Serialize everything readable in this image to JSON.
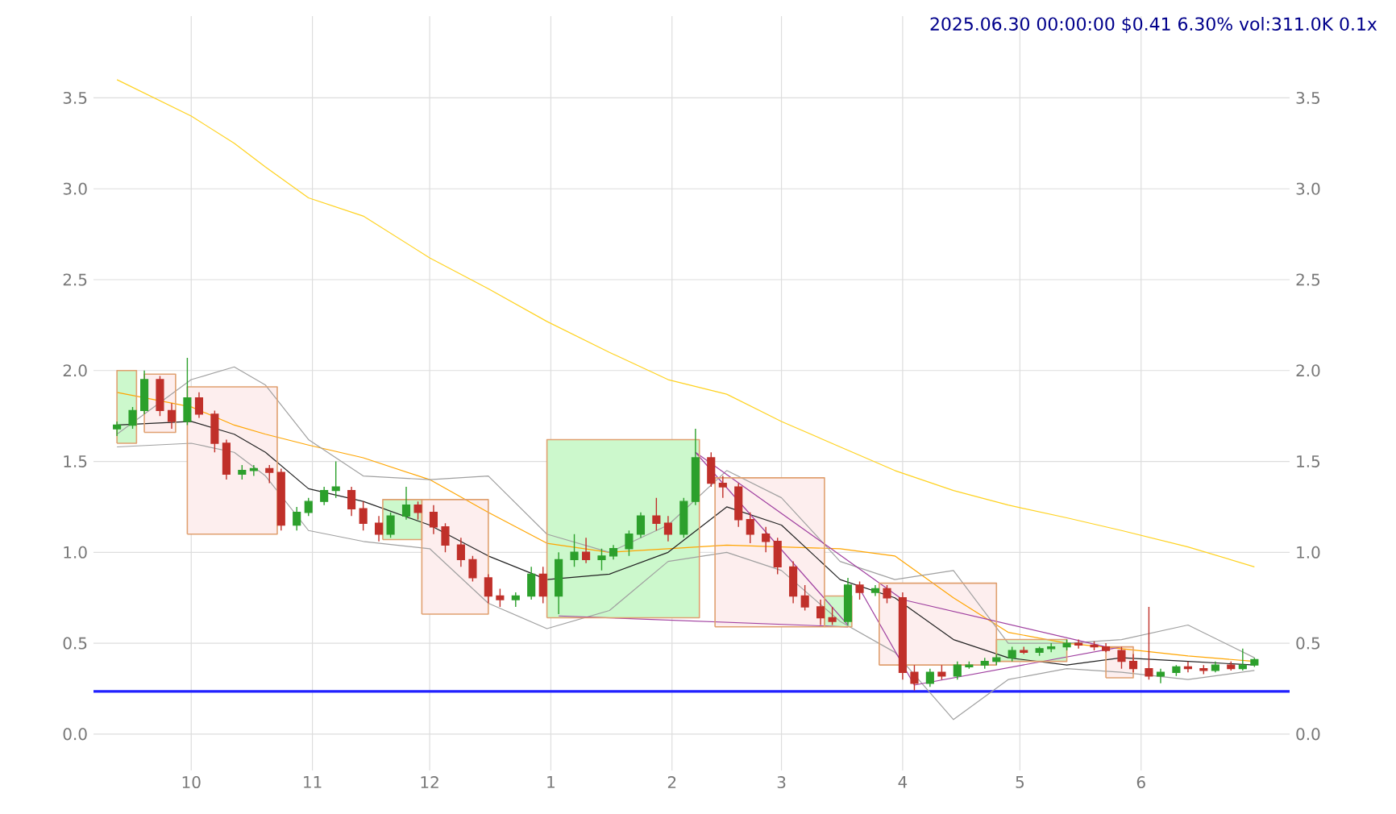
{
  "chart_data": {
    "type": "candlestick",
    "title": "2025.06.30 00:00:00 $0.41 6.30% vol:311.0K 0.1x",
    "x": [
      "2024-09-12",
      "2024-10-01",
      "2024-10-12",
      "2024-10-20",
      "2024-10-31",
      "2024-11-14",
      "2024-12-01",
      "2024-12-16",
      "2024-12-31",
      "2025-01-16",
      "2025-01-31",
      "2025-02-15",
      "2025-03-01",
      "2025-03-16",
      "2025-03-30",
      "2025-04-14",
      "2025-04-28",
      "2025-05-13",
      "2025-05-27",
      "2025-06-13",
      "2025-06-30"
    ],
    "series": [
      {
        "type": "area",
        "color": "#ccf8cc",
        "x": [
          "2024-09-12",
          "2024-09-12",
          "2024-09-17",
          "2024-09-17",
          "2024-09-12"
        ],
        "values": [
          1.6,
          2.0,
          2.0,
          1.6,
          1.6
        ]
      },
      {
        "type": "area",
        "color": "#fdeeee",
        "x": [
          "2024-09-19",
          "2024-09-19",
          "2024-09-27",
          "2024-09-27",
          "2024-09-19"
        ],
        "values": [
          1.66,
          1.98,
          1.98,
          1.66,
          1.66
        ]
      },
      {
        "type": "area",
        "color": "#fdeeee",
        "x": [
          "2024-09-30",
          "2024-09-30",
          "2024-10-23",
          "2024-10-23",
          "2024-09-30"
        ],
        "values": [
          1.1,
          1.91,
          1.91,
          1.1,
          1.1
        ]
      },
      {
        "type": "area",
        "color": "#ccf8cc",
        "x": [
          "2024-11-19",
          "2024-11-19",
          "2024-11-29",
          "2024-11-29",
          "2024-11-19"
        ],
        "values": [
          1.07,
          1.29,
          1.29,
          1.07,
          1.07
        ]
      },
      {
        "type": "area",
        "color": "#fdeeee",
        "x": [
          "2024-11-29",
          "2024-11-29",
          "2024-12-16",
          "2024-12-16",
          "2024-11-29"
        ],
        "values": [
          0.66,
          1.29,
          1.29,
          0.66,
          0.66
        ]
      },
      {
        "type": "area",
        "color": "#ccf8cc",
        "x": [
          "2024-12-31",
          "2024-12-31",
          "2025-02-08",
          "2025-02-08",
          "2024-12-31"
        ],
        "values": [
          0.64,
          1.62,
          1.62,
          0.64,
          0.64
        ]
      },
      {
        "type": "area",
        "color": "#fdeeee",
        "x": [
          "2025-02-12",
          "2025-02-12",
          "2025-03-12",
          "2025-03-12",
          "2025-02-12"
        ],
        "values": [
          0.59,
          1.41,
          1.41,
          0.59,
          0.59
        ]
      },
      {
        "type": "area",
        "color": "#ccf8cc",
        "x": [
          "2025-03-12",
          "2025-03-12",
          "2025-03-19",
          "2025-03-19",
          "2025-03-12"
        ],
        "values": [
          0.59,
          0.76,
          0.76,
          0.59,
          0.59
        ]
      },
      {
        "type": "area",
        "color": "#fdeeee",
        "x": [
          "2025-03-26",
          "2025-03-26",
          "2025-04-25",
          "2025-04-25",
          "2025-03-26"
        ],
        "values": [
          0.38,
          0.83,
          0.83,
          0.38,
          0.38
        ]
      },
      {
        "type": "area",
        "color": "#ccf8cc",
        "x": [
          "2025-04-25",
          "2025-04-25",
          "2025-05-13",
          "2025-05-13",
          "2025-04-25"
        ],
        "values": [
          0.4,
          0.52,
          0.52,
          0.4,
          0.4
        ]
      },
      {
        "type": "area",
        "color": "#fdeeee",
        "x": [
          "2025-05-23",
          "2025-05-23",
          "2025-05-30",
          "2025-05-30",
          "2025-05-23"
        ],
        "values": [
          0.31,
          0.48,
          0.48,
          0.31,
          0.31
        ]
      },
      {
        "type": "line",
        "color": "#ffd21f",
        "values": [
          3.6,
          3.4,
          3.25,
          3.12,
          2.95,
          2.85,
          2.62,
          2.45,
          2.27,
          2.1,
          1.95,
          1.87,
          1.72,
          1.58,
          1.45,
          1.34,
          1.26,
          1.19,
          1.12,
          1.03,
          0.92
        ]
      },
      {
        "type": "line",
        "color": "#ffa500",
        "values": [
          1.88,
          1.8,
          1.7,
          1.65,
          1.59,
          1.52,
          1.4,
          1.22,
          1.05,
          1.0,
          1.02,
          1.04,
          1.03,
          1.02,
          0.98,
          0.75,
          0.56,
          0.5,
          0.47,
          0.43,
          0.4
        ]
      },
      {
        "type": "line",
        "color": "#222222",
        "values": [
          1.7,
          1.72,
          1.65,
          1.55,
          1.35,
          1.28,
          1.15,
          0.98,
          0.85,
          0.88,
          1.0,
          1.25,
          1.15,
          0.85,
          0.75,
          0.52,
          0.42,
          0.38,
          0.42,
          0.4,
          0.38
        ]
      },
      {
        "type": "line",
        "color": "#a0a0a0",
        "values": [
          1.65,
          1.95,
          2.02,
          1.92,
          1.62,
          1.42,
          1.4,
          1.42,
          1.1,
          1.0,
          1.15,
          1.45,
          1.3,
          0.95,
          0.85,
          0.9,
          0.5,
          0.5,
          0.52,
          0.6,
          0.42
        ]
      },
      {
        "type": "line",
        "color": "#a0a0a0",
        "values": [
          1.58,
          1.6,
          1.55,
          1.42,
          1.12,
          1.06,
          1.02,
          0.72,
          0.58,
          0.68,
          0.95,
          1.0,
          0.9,
          0.62,
          0.45,
          0.08,
          0.3,
          0.36,
          0.34,
          0.3,
          0.35
        ]
      },
      {
        "type": "line",
        "color": "#a040a0",
        "x": [
          "2025-02-07",
          "2025-03-18"
        ],
        "values": [
          1.55,
          0.6
        ]
      },
      {
        "type": "line",
        "color": "#a040a0",
        "x": [
          "2025-02-07",
          "2025-04-01",
          "2025-05-23"
        ],
        "values": [
          1.55,
          0.74,
          0.48
        ]
      },
      {
        "type": "line",
        "color": "#a040a0",
        "x": [
          "2025-01-03",
          "2025-03-18"
        ],
        "values": [
          0.65,
          0.59
        ]
      },
      {
        "type": "line",
        "color": "#a040a0",
        "x": [
          "2025-03-21",
          "2025-04-04"
        ],
        "values": [
          0.8,
          0.27
        ]
      },
      {
        "type": "line",
        "color": "#a040a0",
        "x": [
          "2025-04-04",
          "2025-05-27"
        ],
        "values": [
          0.27,
          0.48
        ]
      },
      {
        "type": "candlestick",
        "color": "#2ca02c",
        "x": [
          "2024-09-12",
          "2024-09-16",
          "2024-09-19",
          "2024-09-30",
          "2024-10-14",
          "2024-10-17",
          "2024-10-28",
          "2024-10-31",
          "2024-11-04",
          "2024-11-07",
          "2024-11-21",
          "2024-11-25",
          "2024-12-23",
          "2024-12-27",
          "2025-01-03",
          "2025-01-07",
          "2025-01-14",
          "2025-01-17",
          "2025-01-21",
          "2025-01-24",
          "2025-02-04",
          "2025-02-07",
          "2025-03-18",
          "2025-03-25",
          "2025-04-08",
          "2025-04-15",
          "2025-04-18",
          "2025-04-22",
          "2025-04-25",
          "2025-04-29",
          "2025-05-06",
          "2025-05-09",
          "2025-05-13",
          "2025-06-06",
          "2025-06-10",
          "2025-06-20",
          "2025-06-27",
          "2025-06-30"
        ],
        "ohlc": [
          [
            1.68,
            1.72,
            1.64,
            1.7
          ],
          [
            1.7,
            1.8,
            1.68,
            1.78
          ],
          [
            1.78,
            2.0,
            1.76,
            1.95
          ],
          [
            1.72,
            2.07,
            1.7,
            1.85
          ],
          [
            1.43,
            1.48,
            1.4,
            1.45
          ],
          [
            1.45,
            1.48,
            1.42,
            1.46
          ],
          [
            1.15,
            1.25,
            1.12,
            1.22
          ],
          [
            1.22,
            1.3,
            1.2,
            1.28
          ],
          [
            1.28,
            1.36,
            1.26,
            1.34
          ],
          [
            1.34,
            1.5,
            1.3,
            1.36
          ],
          [
            1.1,
            1.22,
            1.08,
            1.2
          ],
          [
            1.2,
            1.36,
            1.18,
            1.26
          ],
          [
            0.74,
            0.78,
            0.7,
            0.76
          ],
          [
            0.76,
            0.92,
            0.74,
            0.88
          ],
          [
            0.76,
            1.0,
            0.66,
            0.96
          ],
          [
            0.96,
            1.1,
            0.92,
            1.0
          ],
          [
            0.96,
            1.02,
            0.9,
            0.98
          ],
          [
            0.98,
            1.04,
            0.96,
            1.02
          ],
          [
            1.02,
            1.12,
            0.98,
            1.1
          ],
          [
            1.1,
            1.22,
            1.08,
            1.2
          ],
          [
            1.1,
            1.3,
            1.08,
            1.28
          ],
          [
            1.28,
            1.68,
            1.26,
            1.52
          ],
          [
            0.62,
            0.86,
            0.6,
            0.82
          ],
          [
            0.78,
            0.82,
            0.76,
            0.8
          ],
          [
            0.28,
            0.36,
            0.26,
            0.34
          ],
          [
            0.32,
            0.4,
            0.3,
            0.38
          ],
          [
            0.37,
            0.4,
            0.36,
            0.38
          ],
          [
            0.38,
            0.42,
            0.36,
            0.4
          ],
          [
            0.4,
            0.44,
            0.38,
            0.42
          ],
          [
            0.42,
            0.48,
            0.4,
            0.46
          ],
          [
            0.45,
            0.48,
            0.43,
            0.47
          ],
          [
            0.47,
            0.5,
            0.45,
            0.48
          ],
          [
            0.48,
            0.52,
            0.46,
            0.5
          ],
          [
            0.32,
            0.36,
            0.28,
            0.34
          ],
          [
            0.34,
            0.38,
            0.32,
            0.37
          ],
          [
            0.35,
            0.4,
            0.34,
            0.38
          ],
          [
            0.36,
            0.47,
            0.35,
            0.38
          ],
          [
            0.38,
            0.42,
            0.37,
            0.41
          ]
        ]
      },
      {
        "type": "candlestick",
        "color": "#c0302a",
        "x": [
          "2024-09-23",
          "2024-09-26",
          "2024-10-03",
          "2024-10-07",
          "2024-10-10",
          "2024-10-21",
          "2024-10-24",
          "2024-11-11",
          "2024-11-14",
          "2024-11-18",
          "2024-11-28",
          "2024-12-02",
          "2024-12-05",
          "2024-12-09",
          "2024-12-12",
          "2024-12-16",
          "2024-12-19",
          "2024-12-30",
          "2025-01-10",
          "2025-01-28",
          "2025-01-31",
          "2025-02-11",
          "2025-02-14",
          "2025-02-18",
          "2025-02-21",
          "2025-02-25",
          "2025-02-28",
          "2025-03-04",
          "2025-03-07",
          "2025-03-11",
          "2025-03-14",
          "2025-03-21",
          "2025-03-28",
          "2025-04-01",
          "2025-04-04",
          "2025-04-11",
          "2025-05-02",
          "2025-05-16",
          "2025-05-20",
          "2025-05-23",
          "2025-05-27",
          "2025-05-30",
          "2025-06-03",
          "2025-06-13",
          "2025-06-17",
          "2025-06-24"
        ],
        "ohlc": [
          [
            1.95,
            1.97,
            1.75,
            1.78
          ],
          [
            1.78,
            1.82,
            1.68,
            1.72
          ],
          [
            1.85,
            1.88,
            1.74,
            1.76
          ],
          [
            1.76,
            1.78,
            1.55,
            1.6
          ],
          [
            1.6,
            1.62,
            1.4,
            1.43
          ],
          [
            1.46,
            1.48,
            1.38,
            1.44
          ],
          [
            1.44,
            1.46,
            1.12,
            1.15
          ],
          [
            1.34,
            1.36,
            1.2,
            1.24
          ],
          [
            1.24,
            1.28,
            1.12,
            1.16
          ],
          [
            1.16,
            1.2,
            1.06,
            1.1
          ],
          [
            1.26,
            1.28,
            1.18,
            1.22
          ],
          [
            1.22,
            1.26,
            1.1,
            1.14
          ],
          [
            1.14,
            1.16,
            1.0,
            1.04
          ],
          [
            1.04,
            1.08,
            0.92,
            0.96
          ],
          [
            0.96,
            0.98,
            0.84,
            0.86
          ],
          [
            0.86,
            0.88,
            0.72,
            0.76
          ],
          [
            0.76,
            0.8,
            0.7,
            0.74
          ],
          [
            0.88,
            0.92,
            0.72,
            0.76
          ],
          [
            1.0,
            1.08,
            0.94,
            0.96
          ],
          [
            1.2,
            1.3,
            1.12,
            1.16
          ],
          [
            1.16,
            1.2,
            1.06,
            1.1
          ],
          [
            1.52,
            1.55,
            1.36,
            1.38
          ],
          [
            1.38,
            1.42,
            1.3,
            1.36
          ],
          [
            1.36,
            1.38,
            1.14,
            1.18
          ],
          [
            1.18,
            1.22,
            1.05,
            1.1
          ],
          [
            1.1,
            1.14,
            1.0,
            1.06
          ],
          [
            1.06,
            1.08,
            0.88,
            0.92
          ],
          [
            0.92,
            0.95,
            0.72,
            0.76
          ],
          [
            0.76,
            0.82,
            0.68,
            0.7
          ],
          [
            0.7,
            0.74,
            0.6,
            0.64
          ],
          [
            0.64,
            0.7,
            0.6,
            0.62
          ],
          [
            0.82,
            0.84,
            0.74,
            0.78
          ],
          [
            0.8,
            0.82,
            0.72,
            0.75
          ],
          [
            0.75,
            0.78,
            0.3,
            0.34
          ],
          [
            0.34,
            0.38,
            0.24,
            0.28
          ],
          [
            0.34,
            0.38,
            0.3,
            0.32
          ],
          [
            0.46,
            0.48,
            0.44,
            0.45
          ],
          [
            0.5,
            0.52,
            0.47,
            0.49
          ],
          [
            0.49,
            0.51,
            0.46,
            0.48
          ],
          [
            0.48,
            0.5,
            0.45,
            0.46
          ],
          [
            0.46,
            0.48,
            0.36,
            0.4
          ],
          [
            0.4,
            0.44,
            0.34,
            0.36
          ],
          [
            0.36,
            0.7,
            0.3,
            0.32
          ],
          [
            0.37,
            0.4,
            0.34,
            0.36
          ],
          [
            0.36,
            0.38,
            0.33,
            0.35
          ],
          [
            0.38,
            0.4,
            0.35,
            0.36
          ]
        ]
      }
    ],
    "ref_lines": [
      {
        "axis": "y",
        "value": 0.235,
        "color": "#2020ff"
      }
    ],
    "xlim": [
      "2024-09-06",
      "2025-07-09"
    ],
    "xticks": [
      {
        "value": "2024-10-01",
        "label": "10"
      },
      {
        "value": "2024-11-01",
        "label": "11"
      },
      {
        "value": "2024-12-01",
        "label": "12"
      },
      {
        "value": "2025-01-01",
        "label": "1"
      },
      {
        "value": "2025-02-01",
        "label": "2"
      },
      {
        "value": "2025-03-01",
        "label": "3"
      },
      {
        "value": "2025-04-01",
        "label": "4"
      },
      {
        "value": "2025-05-01",
        "label": "5"
      },
      {
        "value": "2025-06-01",
        "label": "6"
      }
    ],
    "ylim": [
      -0.2,
      3.95
    ],
    "yticks": [
      {
        "value": 0,
        "label": "0.0"
      },
      0.5,
      {
        "value": 1,
        "label": "1.0"
      },
      1.5,
      {
        "value": 2,
        "label": "2.0"
      },
      2.5,
      {
        "value": 3,
        "label": "3.0"
      },
      3.5
    ],
    "y2lim": [
      -0.2,
      3.95
    ],
    "y2ticks": [
      {
        "value": 0,
        "label": "0.0"
      },
      0.5,
      {
        "value": 1,
        "label": "1.0"
      },
      1.5,
      {
        "value": 2,
        "label": "2.0"
      },
      2.5,
      {
        "value": 3,
        "label": "3.0"
      },
      3.5
    ],
    "grid": true
  }
}
